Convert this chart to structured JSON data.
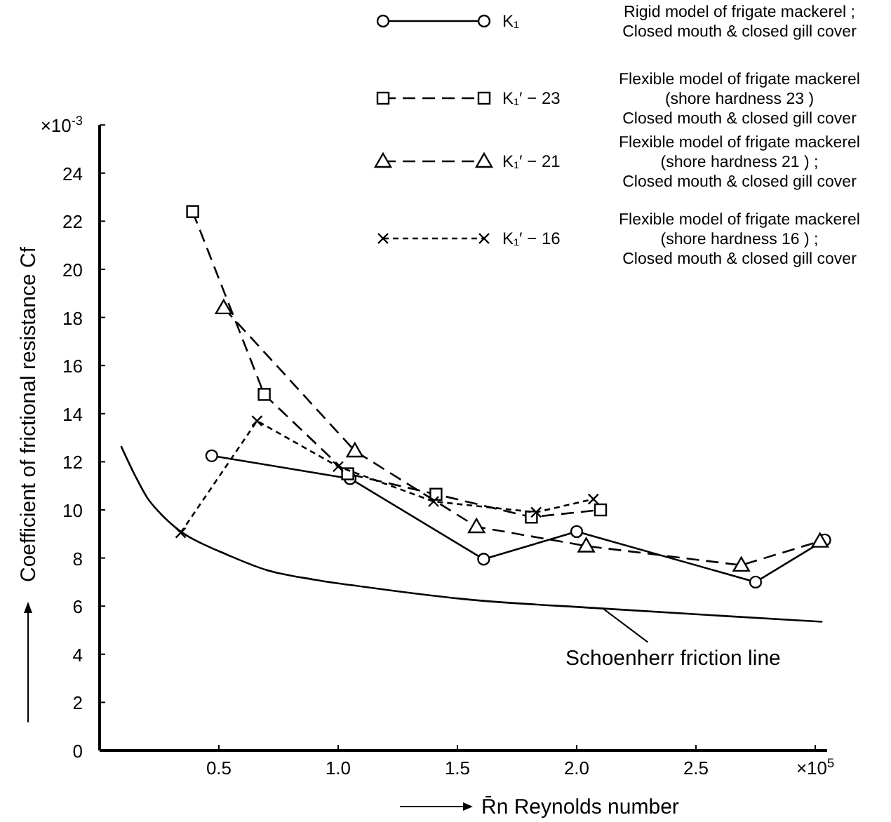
{
  "chart_data": {
    "type": "line",
    "xlabel": "R̄n  Reynolds number",
    "ylabel": "Coefficient of frictional resistance Cf",
    "xlim": [
      0,
      3.05
    ],
    "ylim": [
      0,
      26
    ],
    "xticks": [
      {
        "value": 0,
        "label": null
      },
      0.5,
      {
        "value": 1,
        "label": "1.0"
      },
      1.5,
      {
        "value": 2,
        "label": "2.0"
      },
      2.5,
      {
        "value": 3,
        "label": "×10$^{5}$"
      }
    ],
    "yticks": [
      0,
      2,
      4,
      6,
      8,
      10,
      12,
      14,
      16,
      18,
      20,
      22,
      24,
      {
        "value": 26,
        "label": "×10$^{-3}$"
      }
    ],
    "grid": false,
    "legend": "top right",
    "series": [
      {
        "name": "K₁",
        "color": "#000000",
        "marker": "circle",
        "line_style": "solid",
        "x": [
          0.47,
          1.05,
          1.61,
          2.0,
          2.75,
          3.04
        ],
        "values": [
          12.25,
          11.3,
          7.95,
          9.1,
          7.0,
          8.75
        ]
      },
      {
        "name": "K₁′ − 23",
        "color": "#000000",
        "marker": "square",
        "line_style": "dashed",
        "x": [
          0.39,
          0.69,
          1.04,
          1.41,
          1.81,
          2.1
        ],
        "values": [
          22.4,
          14.8,
          11.5,
          10.65,
          9.7,
          10.0
        ]
      },
      {
        "name": "K₁′ − 21",
        "color": "#000000",
        "marker": "triangle",
        "line_style": "dashed",
        "x": [
          0.52,
          1.07,
          1.58,
          2.04,
          2.69,
          3.02
        ],
        "values": [
          18.4,
          12.45,
          9.3,
          8.5,
          7.7,
          8.7
        ]
      },
      {
        "name": "K₁′ − 16",
        "color": "#000000",
        "marker": "cross",
        "line_style": "dotted",
        "x": [
          0.34,
          0.66,
          1.0,
          1.4,
          1.83,
          2.07
        ],
        "values": [
          9.05,
          13.7,
          11.8,
          10.35,
          9.9,
          10.45
        ]
      },
      {
        "color": "#000000",
        "marker": "none",
        "line_style": "solid",
        "x": [
          0.09,
          0.15,
          0.2,
          0.25,
          0.34,
          0.45,
          0.52,
          0.7,
          0.9,
          1.11,
          1.52,
          2.11,
          2.6,
          3.03
        ],
        "values": [
          12.65,
          11.4,
          10.5,
          9.9,
          9.1,
          8.5,
          8.2,
          7.5,
          7.1,
          6.8,
          6.3,
          5.9,
          5.6,
          5.35
        ]
      }
    ],
    "annotations": [
      {
        "text": "Schoenherr friction line",
        "x": 2.11,
        "y": 5.9
      },
      "Rigid model of frigate mackerel ;\nClosed mouth & closed gill cover",
      "Flexible model of frigate mackerel\n(shore hardness 23 )\nClosed mouth & closed gill cover",
      "Flexible model of frigate mackerel\n(shore hardness 21 ) ;\nClosed mouth & closed gill cover",
      "Flexible model of frigate mackerel\n(shore hardness 16 ) ;\nClosed mouth & closed gill cover"
    ]
  }
}
